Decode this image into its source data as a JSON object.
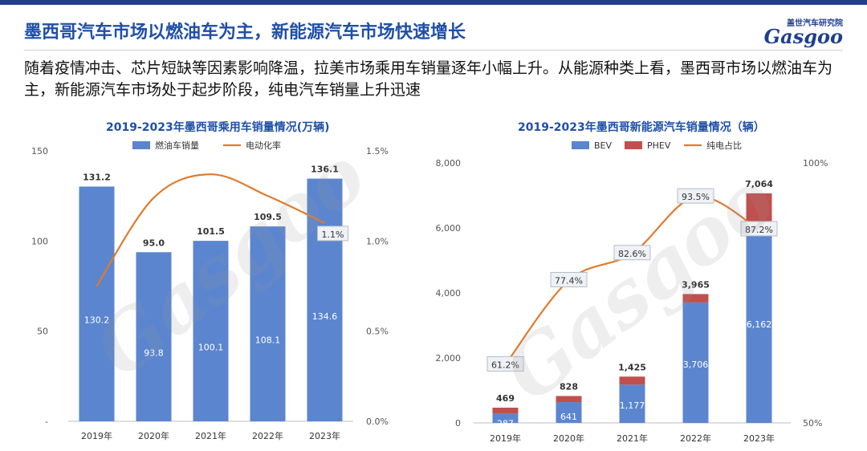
{
  "page": {
    "title": "墨西哥汽车市场以燃油车为主，新能源汽车市场快速增长",
    "intro": "随着疫情冲击、芯片短缺等因素影响降温，拉美市场乘用车销量逐年小幅上升。从能源种类上看，墨西哥市场以燃油车为主，新能源汽车市场处于起步阶段，纯电汽车销量上升迅速"
  },
  "logo": {
    "cn": "盖世汽车研究院",
    "en": "Gasgoo"
  },
  "colors": {
    "blue": "#5b86cf",
    "red": "#c0504d",
    "orange": "#e07a2c",
    "title": "#1f4fa8"
  },
  "chart_data": [
    {
      "type": "bar",
      "title": "2019-2023年墨西哥乘用车销量情况(万辆)",
      "categories": [
        "2019年",
        "2020年",
        "2021年",
        "2022年",
        "2023年"
      ],
      "series": [
        {
          "name": "燃油车销量",
          "type": "bar",
          "values": [
            130.2,
            93.8,
            100.1,
            108.1,
            134.6
          ],
          "labels": [
            "130.2",
            "93.8",
            "100.1",
            "108.1",
            "134.6"
          ]
        },
        {
          "name": "电动化率",
          "type": "line",
          "axis": "right",
          "values": [
            0.75,
            1.24,
            1.37,
            1.25,
            1.1
          ]
        }
      ],
      "total_labels": [
        "131.2",
        "95.0",
        "101.5",
        "109.5",
        "136.1"
      ],
      "point_labels": [
        "",
        "",
        "",
        "",
        "1.1%"
      ],
      "y_left": {
        "range": [
          0,
          150
        ],
        "ticks": [
          "-",
          "50",
          "100",
          "150"
        ]
      },
      "y_right": {
        "range": [
          0,
          1.5
        ],
        "ticks": [
          "0.0%",
          "0.5%",
          "1.0%",
          "1.5%"
        ]
      },
      "legend_position": "top"
    },
    {
      "type": "bar",
      "title": "2019-2023年墨西哥新能源汽车销量情况（辆）",
      "categories": [
        "2019年",
        "2020年",
        "2021年",
        "2022年",
        "2023年"
      ],
      "series": [
        {
          "name": "BEV",
          "type": "bar",
          "values": [
            287,
            641,
            1177,
            3706,
            6162
          ],
          "labels": [
            "287",
            "641",
            "1,177",
            "3,706",
            "6,162"
          ]
        },
        {
          "name": "PHEV",
          "type": "bar",
          "values": [
            182,
            187,
            248,
            259,
            902
          ]
        },
        {
          "name": "纯电占比",
          "type": "line",
          "axis": "right",
          "values": [
            61.2,
            77.4,
            82.6,
            93.5,
            87.2
          ]
        }
      ],
      "total_labels": [
        "469",
        "828",
        "1,425",
        "3,965",
        "7,064"
      ],
      "point_labels": [
        "61.2%",
        "77.4%",
        "82.6%",
        "93.5%",
        "87.2%"
      ],
      "y_left": {
        "range": [
          0,
          8000
        ],
        "ticks": [
          "0",
          "2,000",
          "4,000",
          "6,000",
          "8,000"
        ]
      },
      "y_right": {
        "range": [
          50,
          100
        ],
        "ticks": [
          "50%",
          "100%"
        ]
      },
      "legend_position": "top"
    }
  ]
}
